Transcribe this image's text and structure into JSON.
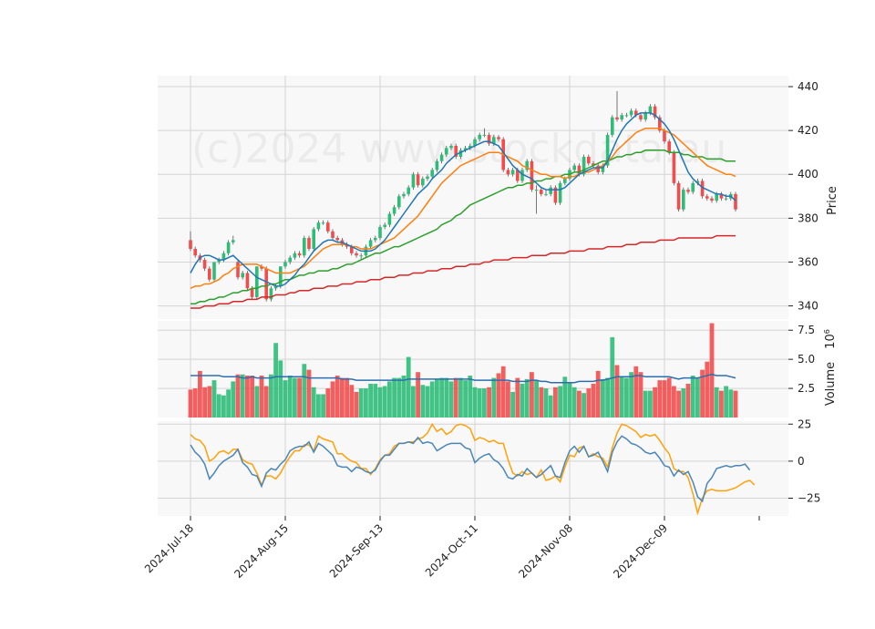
{
  "chart_data": {
    "type": "candlestick",
    "watermark": "(c)2024 www.stockdata.au",
    "colors": {
      "panel_bg": "#f8f8f8",
      "grid": "#d4d4d4",
      "up": "#2ebd78",
      "down": "#f24c4c",
      "ma_fast": "#1f77b4",
      "ma_mid": "#ff7f0e",
      "ma_slow": "#2ca02c",
      "ma_long": "#d62728",
      "vol_ma": "#2c6fb0",
      "osc_fast": "#4a86b8",
      "osc_slow": "#ffa10a"
    },
    "x_ticks": [
      "2024-Jul-18",
      "2024-Aug-15",
      "2024-Sep-13",
      "2024-Oct-11",
      "2024-Nov-08",
      "2024-Dec-09"
    ],
    "x_tick_index": [
      0,
      20,
      40,
      60,
      80,
      100
    ],
    "candles": {
      "open": [
        370,
        366,
        363,
        361,
        357,
        352,
        360,
        361,
        364,
        369,
        360,
        353,
        355,
        348,
        344,
        358,
        357,
        343,
        348,
        349,
        358,
        360,
        362,
        364,
        363,
        371,
        366,
        375,
        378,
        378,
        374,
        371,
        370,
        368,
        367,
        364,
        363,
        363,
        367,
        370,
        371,
        376,
        377,
        382,
        385,
        390,
        391,
        394,
        400,
        395,
        398,
        399,
        402,
        406,
        409,
        412,
        413,
        408,
        411,
        412,
        413,
        416,
        418,
        418,
        414,
        417,
        416,
        402,
        400,
        402,
        397,
        402,
        406,
        393,
        393,
        391,
        391,
        394,
        387,
        396,
        398,
        402,
        404,
        400,
        408,
        405,
        404,
        401,
        404,
        418,
        426,
        425,
        427,
        427,
        429,
        427,
        425,
        428,
        431,
        426,
        420,
        415,
        410,
        396,
        384,
        393,
        392,
        396,
        397,
        390,
        389,
        388,
        391,
        389,
        389,
        391
      ],
      "close": [
        366,
        363,
        361,
        357,
        352,
        360,
        361,
        364,
        369,
        370,
        353,
        355,
        348,
        344,
        358,
        357,
        343,
        348,
        349,
        358,
        360,
        362,
        364,
        363,
        371,
        366,
        375,
        378,
        378,
        374,
        371,
        370,
        368,
        367,
        364,
        363,
        363,
        367,
        370,
        371,
        376,
        377,
        382,
        385,
        390,
        391,
        394,
        400,
        395,
        398,
        399,
        402,
        406,
        409,
        412,
        413,
        408,
        411,
        412,
        413,
        416,
        418,
        418,
        414,
        417,
        416,
        402,
        400,
        402,
        397,
        402,
        406,
        393,
        393,
        391,
        391,
        394,
        387,
        396,
        398,
        402,
        404,
        400,
        408,
        405,
        404,
        401,
        404,
        418,
        426,
        425,
        427,
        427,
        429,
        427,
        425,
        428,
        431,
        426,
        420,
        415,
        410,
        396,
        384,
        393,
        392,
        396,
        397,
        390,
        389,
        388,
        391,
        389,
        389,
        391,
        384
      ],
      "high": [
        374,
        367,
        364,
        362,
        358,
        360,
        362,
        365,
        370,
        372,
        361,
        356,
        356,
        349,
        358,
        359,
        358,
        349,
        350,
        358,
        361,
        363,
        365,
        365,
        372,
        372,
        376,
        379,
        379,
        379,
        375,
        372,
        371,
        369,
        368,
        365,
        364,
        368,
        371,
        372,
        377,
        378,
        383,
        386,
        391,
        392,
        395,
        401,
        401,
        399,
        400,
        403,
        407,
        410,
        413,
        414,
        414,
        412,
        413,
        414,
        417,
        419,
        421,
        419,
        418,
        418,
        417,
        403,
        403,
        403,
        403,
        407,
        407,
        395,
        394,
        393,
        395,
        395,
        397,
        399,
        403,
        405,
        405,
        409,
        409,
        406,
        405,
        405,
        419,
        427,
        438,
        428,
        428,
        430,
        430,
        428,
        429,
        432,
        432,
        427,
        421,
        416,
        411,
        397,
        394,
        394,
        397,
        398,
        398,
        391,
        390,
        392,
        392,
        391,
        392,
        392
      ],
      "low": [
        365,
        362,
        360,
        356,
        351,
        351,
        359,
        360,
        363,
        368,
        352,
        352,
        347,
        343,
        343,
        356,
        342,
        342,
        347,
        348,
        357,
        359,
        361,
        362,
        362,
        365,
        365,
        374,
        377,
        373,
        370,
        369,
        367,
        366,
        363,
        362,
        361,
        362,
        366,
        369,
        370,
        375,
        376,
        381,
        384,
        389,
        390,
        393,
        394,
        394,
        397,
        398,
        401,
        405,
        408,
        411,
        407,
        407,
        410,
        411,
        412,
        415,
        417,
        413,
        413,
        415,
        401,
        399,
        399,
        396,
        396,
        401,
        392,
        382,
        390,
        390,
        390,
        386,
        386,
        395,
        397,
        401,
        399,
        399,
        404,
        403,
        400,
        400,
        403,
        417,
        424,
        424,
        426,
        426,
        426,
        424,
        424,
        427,
        425,
        419,
        414,
        409,
        395,
        383,
        383,
        391,
        391,
        395,
        389,
        388,
        387,
        387,
        388,
        388,
        388,
        383
      ]
    },
    "ma_fast": [
      355,
      359,
      362,
      363,
      363,
      362,
      361,
      361,
      362,
      363,
      361,
      359,
      357,
      355,
      353,
      352,
      351,
      350,
      349,
      349,
      350,
      352,
      354,
      357,
      359,
      362,
      365,
      367,
      369,
      370,
      370,
      369,
      369,
      368,
      367,
      366,
      365,
      365,
      365,
      366,
      368,
      370,
      373,
      376,
      379,
      382,
      385,
      388,
      391,
      393,
      395,
      398,
      400,
      402,
      405,
      407,
      409,
      410,
      411,
      412,
      413,
      414,
      415,
      415,
      414,
      413,
      410,
      407,
      404,
      402,
      400,
      399,
      398,
      396,
      394,
      393,
      393,
      393,
      393,
      394,
      396,
      398,
      400,
      401,
      402,
      403,
      403,
      403,
      406,
      411,
      416,
      420,
      423,
      425,
      427,
      428,
      428,
      428,
      427,
      425,
      423,
      420,
      416,
      411,
      406,
      401,
      398,
      396,
      394,
      393,
      392,
      391,
      391,
      390,
      390,
      388
    ],
    "ma_mid": [
      348,
      349,
      349,
      350,
      350,
      351,
      352,
      354,
      355,
      357,
      358,
      359,
      359,
      359,
      359,
      358,
      357,
      356,
      355,
      355,
      355,
      355,
      356,
      357,
      358,
      360,
      362,
      364,
      366,
      367,
      368,
      368,
      368,
      368,
      367,
      367,
      366,
      366,
      366,
      367,
      368,
      369,
      370,
      371,
      373,
      375,
      377,
      379,
      381,
      384,
      387,
      390,
      393,
      396,
      398,
      400,
      402,
      404,
      405,
      406,
      407,
      408,
      409,
      410,
      410,
      410,
      409,
      408,
      407,
      406,
      404,
      403,
      402,
      401,
      400,
      400,
      399,
      399,
      399,
      398,
      399,
      399,
      400,
      401,
      401,
      402,
      403,
      404,
      406,
      408,
      411,
      413,
      415,
      417,
      419,
      420,
      421,
      421,
      421,
      421,
      420,
      419,
      418,
      416,
      414,
      412,
      410,
      408,
      406,
      404,
      403,
      402,
      401,
      400,
      400,
      399
    ],
    "ma_slow": [
      341,
      341,
      342,
      342,
      343,
      343,
      344,
      344,
      345,
      346,
      346,
      347,
      347,
      348,
      348,
      349,
      349,
      350,
      350,
      351,
      352,
      352,
      353,
      354,
      354,
      355,
      355,
      356,
      356,
      356,
      357,
      357,
      358,
      359,
      359,
      360,
      361,
      362,
      363,
      364,
      364,
      365,
      366,
      367,
      367,
      368,
      369,
      370,
      371,
      372,
      373,
      374,
      375,
      377,
      378,
      379,
      381,
      382,
      384,
      386,
      387,
      388,
      389,
      390,
      391,
      392,
      393,
      394,
      394,
      395,
      395,
      396,
      396,
      397,
      397,
      398,
      398,
      399,
      399,
      400,
      400,
      401,
      401,
      402,
      403,
      404,
      405,
      406,
      406,
      407,
      408,
      408,
      409,
      409,
      410,
      410,
      411,
      411,
      411,
      411,
      411,
      410,
      410,
      410,
      409,
      409,
      408,
      408,
      408,
      407,
      407,
      407,
      407,
      406,
      406,
      406
    ],
    "ma_long": [
      339,
      339,
      339,
      340,
      340,
      340,
      341,
      341,
      341,
      342,
      342,
      342,
      343,
      343,
      343,
      344,
      344,
      344,
      345,
      345,
      345,
      346,
      346,
      347,
      347,
      347,
      348,
      348,
      348,
      349,
      349,
      349,
      350,
      350,
      350,
      351,
      351,
      351,
      352,
      352,
      352,
      353,
      353,
      353,
      354,
      354,
      354,
      355,
      355,
      355,
      356,
      356,
      356,
      357,
      357,
      357,
      358,
      358,
      358,
      359,
      359,
      359,
      360,
      360,
      361,
      361,
      361,
      361,
      362,
      362,
      362,
      362,
      363,
      363,
      363,
      363,
      364,
      364,
      364,
      364,
      365,
      365,
      365,
      365,
      366,
      366,
      366,
      366,
      367,
      367,
      367,
      367,
      368,
      368,
      368,
      369,
      369,
      369,
      369,
      370,
      370,
      370,
      370,
      371,
      371,
      371,
      371,
      371,
      371,
      371,
      371,
      372,
      372,
      372,
      372,
      372
    ],
    "volume": {
      "ylabel": "Volume",
      "exponent": "6",
      "values": [
        2.4,
        2.5,
        4.0,
        2.6,
        2.7,
        3.2,
        2.0,
        1.9,
        2.4,
        3.1,
        3.7,
        3.7,
        3.6,
        3.6,
        2.7,
        3.6,
        2.7,
        3.7,
        6.4,
        4.9,
        3.2,
        3.6,
        3.4,
        3.4,
        4.6,
        4.1,
        2.6,
        2.0,
        2.0,
        2.5,
        3.1,
        3.6,
        3.4,
        3.4,
        2.8,
        2.2,
        2.5,
        2.5,
        2.9,
        2.9,
        2.6,
        2.7,
        3.1,
        3.4,
        3.4,
        3.6,
        5.2,
        2.7,
        3.9,
        2.8,
        2.7,
        3.1,
        3.3,
        3.4,
        3.4,
        3.1,
        3.4,
        3.4,
        3.2,
        3.6,
        2.6,
        2.5,
        2.5,
        2.6,
        3.4,
        3.8,
        4.4,
        3.1,
        2.2,
        3.4,
        2.9,
        3.3,
        3.9,
        3.2,
        2.6,
        2.5,
        1.9,
        2.6,
        2.7,
        3.5,
        3.0,
        2.6,
        2.3,
        2.1,
        2.5,
        2.9,
        4.0,
        3.3,
        3.4,
        6.9,
        4.5,
        3.5,
        3.4,
        3.9,
        4.4,
        3.9,
        2.3,
        2.3,
        2.6,
        3.2,
        3.2,
        3.4,
        2.7,
        2.3,
        2.5,
        2.9,
        3.6,
        3.4,
        4.1,
        4.8,
        8.1,
        2.6,
        2.3,
        2.7,
        2.4,
        2.3
      ],
      "ma": [
        3.6,
        3.6,
        3.6,
        3.6,
        3.6,
        3.6,
        3.6,
        3.5,
        3.5,
        3.5,
        3.5,
        3.4,
        3.4,
        3.5,
        3.4,
        3.4,
        3.4,
        3.4,
        3.5,
        3.5,
        3.5,
        3.5,
        3.5,
        3.5,
        3.5,
        3.4,
        3.4,
        3.4,
        3.4,
        3.4,
        3.4,
        3.4,
        3.3,
        3.3,
        3.3,
        3.2,
        3.2,
        3.2,
        3.2,
        3.2,
        3.2,
        3.2,
        3.2,
        3.2,
        3.2,
        3.2,
        3.3,
        3.3,
        3.3,
        3.3,
        3.3,
        3.3,
        3.3,
        3.3,
        3.3,
        3.3,
        3.3,
        3.3,
        3.3,
        3.3,
        3.2,
        3.2,
        3.2,
        3.2,
        3.2,
        3.2,
        3.2,
        3.2,
        3.1,
        3.1,
        3.1,
        3.1,
        3.2,
        3.2,
        3.1,
        3.1,
        3.0,
        3.0,
        3.0,
        3.0,
        3.0,
        3.0,
        3.1,
        3.1,
        3.1,
        3.1,
        3.2,
        3.2,
        3.3,
        3.4,
        3.5,
        3.5,
        3.5,
        3.5,
        3.6,
        3.6,
        3.5,
        3.5,
        3.5,
        3.5,
        3.5,
        3.5,
        3.4,
        3.3,
        3.4,
        3.4,
        3.4,
        3.4,
        3.5,
        3.6,
        3.7,
        3.6,
        3.6,
        3.6,
        3.5,
        3.4
      ],
      "yticks": [
        2.5,
        5.0,
        7.5
      ],
      "ylim": [
        0,
        8.3
      ]
    },
    "oscillator": {
      "fast": [
        11,
        6,
        3,
        -2,
        -12,
        -8,
        -3,
        0,
        2,
        4,
        8,
        -1,
        -4,
        -9,
        -10,
        -17,
        -8,
        -5,
        -6,
        -2,
        1,
        7,
        9,
        10,
        10,
        13,
        6,
        12,
        10,
        7,
        4,
        -3,
        -4,
        -4,
        -7,
        -4,
        -5,
        -7,
        -8,
        -6,
        0,
        4,
        4,
        8,
        12,
        12,
        13,
        12,
        16,
        12,
        13,
        12,
        7,
        9,
        11,
        12,
        12,
        12,
        9,
        8,
        -1,
        2,
        4,
        5,
        1,
        -1,
        -5,
        -11,
        -12,
        -9,
        -10,
        -5,
        -8,
        -11,
        -9,
        -6,
        -3,
        -10,
        -11,
        -1,
        7,
        10,
        6,
        10,
        3,
        4,
        6,
        0,
        -7,
        6,
        13,
        17,
        15,
        12,
        11,
        9,
        6,
        5,
        6,
        2,
        -3,
        -4,
        -10,
        -6,
        -9,
        -7,
        -14,
        -24,
        -27,
        -15,
        -11,
        -5,
        -4,
        -3,
        -4,
        -3,
        -3,
        -2,
        -6
      ],
      "slow": [
        18,
        15,
        14,
        10,
        0,
        2,
        6,
        7,
        5,
        8,
        8,
        1,
        -1,
        -2,
        -8,
        -16,
        -10,
        -10,
        -12,
        -8,
        -2,
        3,
        7,
        7,
        11,
        11,
        7,
        17,
        15,
        14,
        13,
        5,
        5,
        2,
        0,
        -1,
        -5,
        -5,
        -9,
        -5,
        1,
        4,
        5,
        10,
        12,
        12,
        13,
        13,
        15,
        16,
        19,
        25,
        20,
        22,
        18,
        20,
        24,
        25,
        24,
        22,
        14,
        16,
        15,
        13,
        14,
        12,
        12,
        1,
        -8,
        -10,
        -7,
        -9,
        -8,
        -11,
        -6,
        -13,
        -12,
        -10,
        -14,
        -4,
        4,
        3,
        9,
        10,
        3,
        5,
        3,
        2,
        -4,
        9,
        19,
        25,
        24,
        22,
        20,
        16,
        18,
        17,
        18,
        14,
        9,
        5,
        -5,
        -7,
        -7,
        -11,
        -22,
        -35,
        -25,
        -20,
        -19,
        -20,
        -20,
        -20,
        -19,
        -18,
        -16,
        -14,
        -13,
        -16
      ],
      "yticks": [
        -25,
        0,
        25
      ],
      "ylim": [
        -37,
        27
      ]
    },
    "price_ylabel": "Price",
    "price_yticks": [
      340,
      360,
      380,
      400,
      420,
      440
    ],
    "price_ylim": [
      334,
      445
    ],
    "grid": true
  }
}
